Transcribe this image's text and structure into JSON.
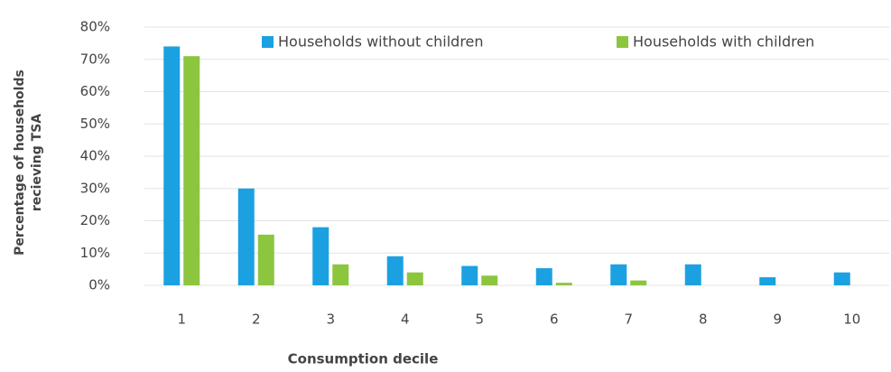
{
  "chart_data": {
    "type": "bar",
    "ylabel": [
      "Percentage of households",
      "recieving TSA"
    ],
    "xlabel": "Consumption decile",
    "categories": [
      "1",
      "2",
      "3",
      "4",
      "5",
      "6",
      "7",
      "8",
      "9",
      "10"
    ],
    "series": [
      {
        "name": "Households without children",
        "color": "#1ba1e2",
        "values": [
          74,
          30,
          18,
          9,
          6,
          5.3,
          6.5,
          6.5,
          2.5,
          4
        ]
      },
      {
        "name": "Households with children",
        "color": "#8cc63f",
        "values": [
          71,
          15.7,
          6.5,
          4,
          3,
          0.8,
          1.5,
          0,
          0,
          0
        ]
      }
    ],
    "ylim": [
      0,
      80
    ],
    "yticks": [
      {
        "value": 0,
        "label": "0%"
      },
      {
        "value": 10,
        "label": "10%"
      },
      {
        "value": 20,
        "label": "20%"
      },
      {
        "value": 30,
        "label": "30%"
      },
      {
        "value": 40,
        "label": "40%"
      },
      {
        "value": 50,
        "label": "50%"
      },
      {
        "value": 60,
        "label": "60%"
      },
      {
        "value": 70,
        "label": "70%"
      },
      {
        "value": 80,
        "label": "80%"
      }
    ],
    "grid": true,
    "legend": "top"
  }
}
